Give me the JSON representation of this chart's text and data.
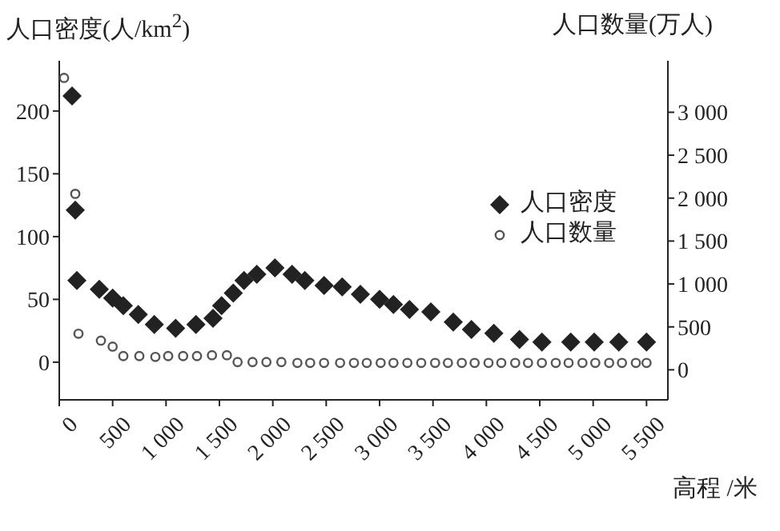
{
  "chart_data": {
    "type": "scatter",
    "xlabel": "高程 /米",
    "ylabel": "人口密度(人/km$^{2}$)",
    "y2label": "人口数量(万人)",
    "series": [
      {
        "name": "人口密度",
        "color": "#222222",
        "marker": "diamond",
        "axis": "y",
        "x": [
          120,
          150,
          165,
          375,
          500,
          600,
          740,
          890,
          1090,
          1280,
          1440,
          1520,
          1630,
          1730,
          1850,
          2020,
          2180,
          2300,
          2480,
          2650,
          2820,
          3000,
          3130,
          3280,
          3480,
          3690,
          3860,
          4070,
          4310,
          4520,
          4790,
          5010,
          5240,
          5500
        ],
        "values": [
          212,
          121,
          65,
          58,
          51,
          45,
          38,
          30,
          27,
          30,
          35,
          45,
          55,
          65,
          70,
          75,
          70,
          65,
          61,
          60,
          54,
          50,
          46,
          42,
          40,
          32,
          26,
          23,
          18,
          16,
          16,
          16,
          16,
          16
        ]
      },
      {
        "name": "人口数量",
        "color": "#555555",
        "marker": "circle",
        "axis": "y2",
        "x": [
          45,
          150,
          180,
          390,
          500,
          600,
          750,
          900,
          1020,
          1160,
          1290,
          1430,
          1570,
          1670,
          1810,
          1940,
          2080,
          2230,
          2350,
          2480,
          2630,
          2760,
          2880,
          3010,
          3130,
          3260,
          3390,
          3520,
          3640,
          3770,
          3890,
          4020,
          4140,
          4270,
          4390,
          4520,
          4650,
          4770,
          4900,
          5020,
          5150,
          5270,
          5400,
          5500
        ],
        "values": [
          3400,
          2050,
          420,
          340,
          270,
          160,
          160,
          150,
          160,
          160,
          160,
          170,
          170,
          90,
          90,
          90,
          90,
          80,
          80,
          80,
          80,
          80,
          80,
          80,
          80,
          80,
          80,
          80,
          80,
          80,
          80,
          80,
          80,
          80,
          80,
          80,
          80,
          80,
          80,
          80,
          80,
          80,
          80,
          80
        ]
      }
    ],
    "xlim": [
      0,
      5700
    ],
    "xticks": [
      0,
      {
        "value": 500,
        "label": "500"
      },
      {
        "value": 1000,
        "label": "1 000"
      },
      {
        "value": 1500,
        "label": "1 500"
      },
      {
        "value": 2000,
        "label": "2 000"
      },
      {
        "value": 2500,
        "label": "2 500"
      },
      {
        "value": 3000,
        "label": "3 000"
      },
      {
        "value": 3500,
        "label": "3 500"
      },
      {
        "value": 4000,
        "label": "4 000"
      },
      {
        "value": 4500,
        "label": "4 500"
      },
      {
        "value": 5000,
        "label": "5 000"
      },
      {
        "value": 5500,
        "label": "5 500"
      }
    ],
    "ylim": [
      -30,
      240
    ],
    "yticks": [
      0,
      50,
      100,
      150,
      200
    ],
    "y2lim": [
      -350,
      3600
    ],
    "y2ticks": [
      0,
      500,
      {
        "value": 1000,
        "label": "1 000"
      },
      {
        "value": 1500,
        "label": "1 500"
      },
      {
        "value": 2000,
        "label": "2 000"
      },
      {
        "value": 2500,
        "label": "2 500"
      },
      {
        "value": 3000,
        "label": "3 000"
      }
    ],
    "legend": "right",
    "grid": false
  }
}
